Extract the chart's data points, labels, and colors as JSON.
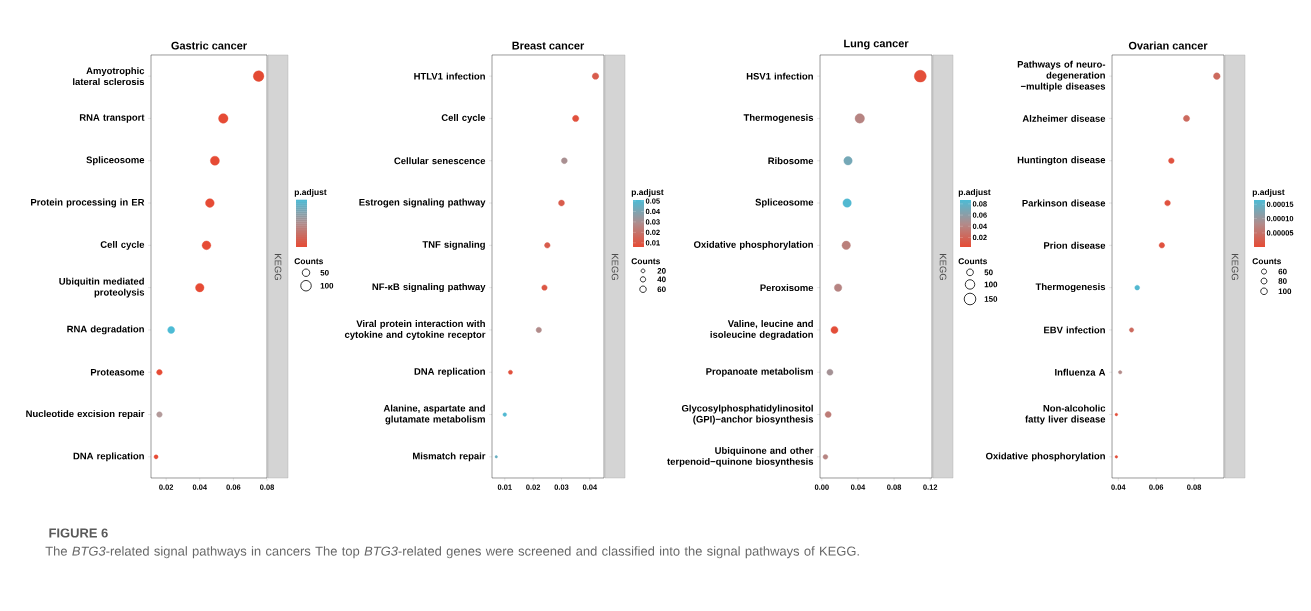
{
  "chart_data": [
    {
      "type": "bubble",
      "orientation": "horizontal",
      "title": "Gastric cancer",
      "categories": [
        "Amyotrophic lateral sclerosis",
        "RNA transport",
        "Spliceosome",
        "Protein processing in ER",
        "Cell cycle",
        "Ubiquitin mediated proteolysis",
        "RNA degradation",
        "Proteasome",
        "Nucleotide excision repair",
        "DNA replication"
      ],
      "values": [
        0.075,
        0.054,
        0.049,
        0.046,
        0.044,
        0.04,
        0.023,
        0.016,
        0.016,
        0.014
      ],
      "sizes": [
        100,
        80,
        74,
        69,
        69,
        65,
        44,
        28,
        28,
        15
      ],
      "colors": [
        "#e34a33",
        "#e64b35",
        "#e64b35",
        "#e64b35",
        "#e64b35",
        "#e64b35",
        "#4dbbd5",
        "#e64b35",
        "#b39b9b",
        "#e64b35"
      ],
      "xlim": [
        0.011,
        0.08
      ],
      "xticks": [
        0.02,
        0.04,
        0.06,
        0.08
      ],
      "clabel": "p.adjust",
      "legend_title": "Counts",
      "size_legend": [
        50,
        100
      ],
      "annotations": [
        "KEGG",
        "FIGURE 6",
        "The *BTG3*-related signal pathways in cancers The top *BTG3*-related genes were screened and classified into the signal pathways of KEGG."
      ]
    },
    {
      "type": "bubble",
      "orientation": "horizontal",
      "title": "Breast cancer",
      "categories": [
        "HTLV1 infection",
        "Cell cycle",
        "Cellular senescence",
        "Estrogen signaling pathway",
        "TNF signaling",
        "NF-κB signaling pathway",
        "Viral protein interaction with cytokine and cytokine receptor",
        "DNA replication",
        "Alanine, aspartate and glutamate metabolism",
        "Mismatch repair"
      ],
      "values": [
        0.042,
        0.035,
        0.031,
        0.03,
        0.025,
        0.024,
        0.022,
        0.012,
        0.01,
        0.007
      ],
      "sizes": [
        60,
        57,
        50,
        50,
        44,
        42,
        42,
        25,
        20,
        9
      ],
      "cvalues": [
        0.012,
        0.008,
        0.03,
        0.012,
        0.012,
        0.01,
        0.028,
        0.008,
        0.05,
        0.045
      ],
      "xlim": [
        0.0055,
        0.045
      ],
      "xticks": [
        0.01,
        0.02,
        0.03,
        0.04
      ],
      "clabel": "p.adjust",
      "clim": [
        0.006,
        0.051
      ],
      "cticks": [
        0.01,
        0.02,
        0.03,
        0.04,
        0.05
      ],
      "legend_title": "Counts",
      "size_legend": [
        20,
        40,
        60
      ],
      "annotations": [
        "KEGG"
      ]
    },
    {
      "type": "bubble",
      "orientation": "horizontal",
      "title": "Lung cancer",
      "categories": [
        "HSV1 infection",
        "Thermogenesis",
        "Ribosome",
        "Spliceosome",
        "Oxidative phosphorylation",
        "Peroxisome",
        "Valine, leucine and isoleucine degradation",
        "Propanoate metabolism",
        "Glycosylphosphatidylinositol (GPI)−anchor biosynthesis",
        "Ubiquinone and other terpenoid−quinone biosynthesis"
      ],
      "values": [
        0.109,
        0.042,
        0.029,
        0.028,
        0.027,
        0.018,
        0.014,
        0.009,
        0.007,
        0.004
      ],
      "sizes": [
        158,
        98,
        79,
        79,
        79,
        62,
        56,
        41,
        41,
        26
      ],
      "cvalues": [
        0.005,
        0.04,
        0.07,
        0.085,
        0.037,
        0.04,
        0.005,
        0.05,
        0.035,
        0.04
      ],
      "xlim": [
        -0.002,
        0.122
      ],
      "xticks": [
        {
          "value": 0,
          "label": "0.00"
        },
        0.04,
        0.08,
        0.12
      ],
      "clabel": "p.adjust",
      "clim": [
        0.003,
        0.087
      ],
      "cticks": [
        0.02,
        0.04,
        0.06,
        0.08
      ],
      "legend_title": "Counts",
      "size_legend": [
        50,
        100,
        150
      ],
      "annotations": [
        "KEGG"
      ]
    },
    {
      "type": "bubble",
      "orientation": "horizontal",
      "title": "Ovarian cancer",
      "categories": [
        "Pathways of neuro-degeneration −multiple diseases",
        "Alzheimer disease",
        "Huntington disease",
        "Parkinson disease",
        "Prion disease",
        "Thermogenesis",
        "EBV infection",
        "Influenza A",
        "Non-alcoholic fatty liver disease",
        "Oxidative phosphorylation"
      ],
      "values": [
        0.092,
        0.076,
        0.068,
        0.066,
        0.063,
        0.05,
        0.047,
        0.041,
        0.039,
        0.039
      ],
      "sizes": [
        100,
        89,
        74,
        74,
        69,
        53,
        44,
        28,
        17,
        17
      ],
      "cvalues": [
        4e-05,
        4e-05,
        1e-05,
        1e-05,
        1e-05,
        0.00016,
        4e-05,
        8e-05,
        5e-06,
        5e-06
      ],
      "xlim": [
        0.0367,
        0.0958
      ],
      "xticks": [
        0.04,
        0.06,
        0.08
      ],
      "clabel": "p.adjust",
      "clim": [
        1e-06,
        0.000165
      ],
      "cticks": [
        {
          "value": 5e-05,
          "label": "0.00005"
        },
        {
          "value": 0.0001,
          "label": "0.00010"
        },
        {
          "value": 0.00015,
          "label": "0.00015"
        }
      ],
      "legend_title": "Counts",
      "size_legend": [
        60,
        80,
        100
      ],
      "annotations": [
        "KEGG"
      ]
    }
  ]
}
